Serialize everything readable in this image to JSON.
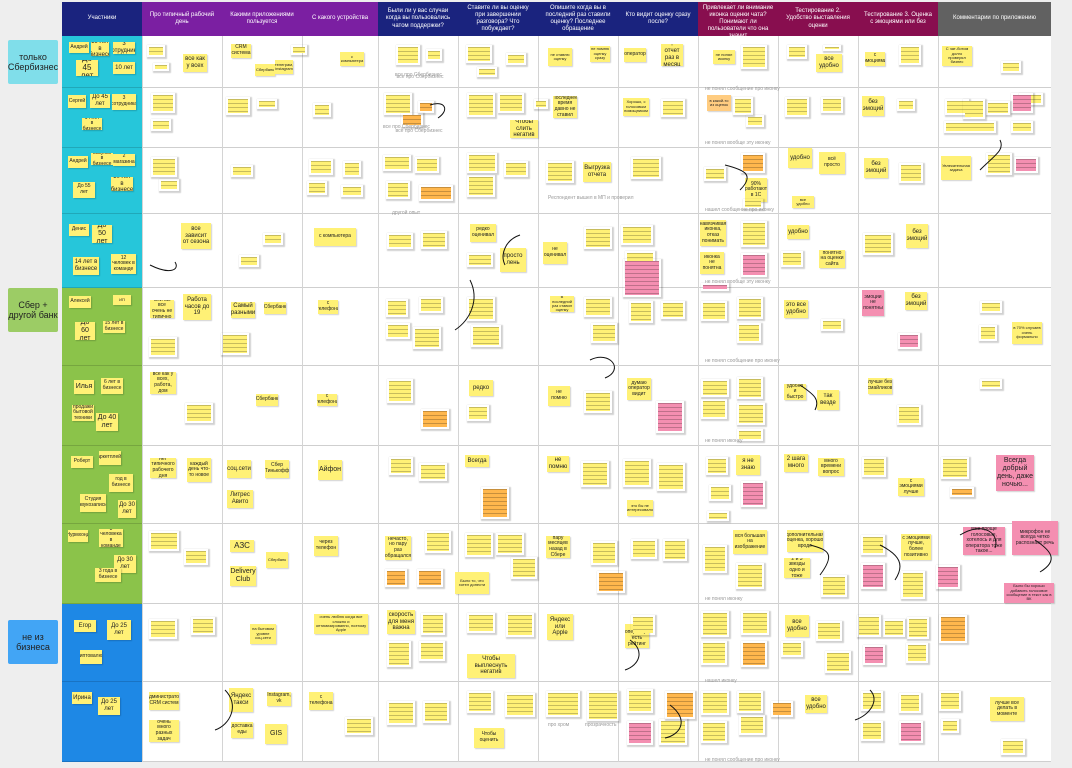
{
  "header": {
    "participants": "Участники",
    "columns": [
      {
        "label": "Про типичный рабочий день",
        "color": "#7b1fa2"
      },
      {
        "label": "Какими приложениями пользуется",
        "color": "#7b1fa2"
      },
      {
        "label": "С какого устройства",
        "color": "#7b1fa2"
      },
      {
        "label": "Были ли у вас случаи когда вы пользовались чатом поддержки?",
        "color": "#1a237e"
      },
      {
        "label": "Ставите ли вы оценку при завершении разговора? Что побуждает?",
        "color": "#1a237e"
      },
      {
        "label": "Опишите когда вы в последний раз ставили оценку? Последнее обращение",
        "color": "#1a237e"
      },
      {
        "label": "Кто видит оценку сразу после?",
        "color": "#1a237e"
      },
      {
        "label": "Тестирование 1. Привлекает ли внимание иконка оценки чата? Понимают ли пользователи что она значит",
        "color": "#880e4f"
      },
      {
        "label": "Тестирование 2. Удобство выставления оценки",
        "color": "#880e4f"
      },
      {
        "label": "Тестирование 3. Оценка с эмоциями или без",
        "color": "#880e4f"
      },
      {
        "label": "Комментарии по приложению",
        "color": "#616161"
      }
    ]
  },
  "groups": [
    {
      "label": "только Сбербизнес",
      "color": "#80deea"
    },
    {
      "label": "Сбер + другой банк",
      "color": "#9ccc65"
    },
    {
      "label": "не из бизнеса",
      "color": "#42a5f5"
    }
  ],
  "participants": [
    {
      "notes": [
        "Андрей",
        "19 лет в бизнесе",
        "До 45 лет",
        "3 сотрудника",
        "10 лет"
      ]
    },
    {
      "notes": [
        "Сергей",
        "До 45 лет",
        "14 лет в бизнесе",
        "3 сотрудника"
      ]
    },
    {
      "notes": [
        "Андрей",
        "Закупки в бизнесе",
        "До 55 лет",
        "10 лет в бизнесе",
        "2 магазина"
      ]
    },
    {
      "notes": [
        "Денис",
        "До 50 лет",
        "14 лет в бизнесе",
        "12 человек в команде"
      ]
    },
    {
      "notes": [
        "Алексей",
        "До 60 лет",
        "15 лет в бизнесе",
        "ИП"
      ]
    },
    {
      "notes": [
        "Илья",
        "6 лет в бизнесе",
        "продажи бытовой техники",
        "До 40 лет"
      ]
    },
    {
      "notes": [
        "Роберт",
        "Маркетплейсы",
        "год в бизнесе",
        "Студия звукозаписи",
        "До 30 лет"
      ]
    },
    {
      "notes": [
        "Нурмхонд",
        "3 человека в команде",
        "До 30 лет",
        "3 года в бизнесе"
      ]
    },
    {
      "notes": [
        "Егор",
        "До 25 лет",
        "криптовалюта"
      ]
    },
    {
      "notes": [
        "Ирина",
        "До 25 лет"
      ]
    }
  ],
  "stickies": [
    {
      "t": "все как у всех"
    },
    {
      "t": "CRM система"
    },
    {
      "t": "Сбербанк"
    },
    {
      "t": "телеграм, instagram"
    },
    {
      "t": "с компьютера"
    },
    {
      "t": "все про Сбербизнес"
    },
    {
      "t": "не ставлю оценку"
    },
    {
      "t": "не помню оценку сразу"
    },
    {
      "t": "оператор"
    },
    {
      "t": "+ отчет раз в месяц"
    },
    {
      "t": "не понял иконку"
    },
    {
      "t": "все удобно"
    },
    {
      "t": "с эмоциями"
    },
    {
      "t": "С чат-ботом долго проверял бизнес"
    },
    {
      "t": "все про Сбербизнес"
    },
    {
      "t": "Чтобы слить негатив"
    },
    {
      "t": "Последнее время давно не ставил"
    },
    {
      "t": "Хорошо, с голосовым помощником"
    },
    {
      "t": "в какой-то из оценок"
    },
    {
      "t": "без эмоций"
    },
    {
      "t": "удобно"
    },
    {
      "t": "всё просто"
    },
    {
      "t": "Выгрузка отчета"
    },
    {
      "t": "90% работают в 1С"
    },
    {
      "t": "все удобно"
    },
    {
      "t": "без эмоций"
    },
    {
      "t": "Увлекательная задача"
    },
    {
      "t": "все зависит от сезона"
    },
    {
      "t": "с компьютера"
    },
    {
      "t": "редко оценивал"
    },
    {
      "t": "просто лень"
    },
    {
      "t": "не оценивал"
    },
    {
      "t": "навязчивая иконка, отказ понимать"
    },
    {
      "t": "иконка не понятна"
    },
    {
      "t": "удобно"
    },
    {
      "t": "понятно на оценки сайта"
    },
    {
      "t": "без эмоций"
    },
    {
      "t": "Сейчас все очень не типично"
    },
    {
      "t": "Работа часов до 19"
    },
    {
      "t": "Самый разными"
    },
    {
      "t": "Сбербанк"
    },
    {
      "t": "с телефона"
    },
    {
      "t": "В последний раз ставил оценку"
    },
    {
      "t": "это все удобно"
    },
    {
      "t": "эмоции не понятны"
    },
    {
      "t": "без эмоций"
    },
    {
      "t": "в 70% случаев очень формально"
    },
    {
      "t": "все как у всех, работа, дом"
    },
    {
      "t": "Сбербанк"
    },
    {
      "t": "с телефона"
    },
    {
      "t": "редко"
    },
    {
      "t": "не помню"
    },
    {
      "t": "думаю оператор видит"
    },
    {
      "t": "удобно и быстро"
    },
    {
      "t": "так везде"
    },
    {
      "t": "лучше без смайликов"
    },
    {
      "t": "нет типичного рабочего дня"
    },
    {
      "t": "каждый день что-то новое"
    },
    {
      "t": "соц.сети"
    },
    {
      "t": "Сбер Тинькофф"
    },
    {
      "t": "Литрес Авито"
    },
    {
      "t": "Айфон"
    },
    {
      "t": "Всегда"
    },
    {
      "t": "не помню"
    },
    {
      "t": "это бы не интересовало"
    },
    {
      "t": "я не знаю"
    },
    {
      "t": "2 шага много"
    },
    {
      "t": "много времени вопрос"
    },
    {
      "t": "с эмоциями лучше"
    },
    {
      "t": "Всегда добрый день, даже ночью..."
    },
    {
      "t": "АЗС"
    },
    {
      "t": "Delivery Club"
    },
    {
      "t": "Сбербанк"
    },
    {
      "t": "через телефон"
    },
    {
      "t": "нечасто, но пару раз обращался"
    },
    {
      "t": "пару месяцев назад в Сбере"
    },
    {
      "t": "Было то, что хотел донести"
    },
    {
      "t": "вся большая на изображение"
    },
    {
      "t": "дополнительная оценка, хорошо вроде"
    },
    {
      "t": "2 и 3 звезды одно и тоже"
    },
    {
      "t": "с эмоциями лучше, более позитивно"
    },
    {
      "t": "мне проще голосовые, хотелось и для оператора тоже такое..."
    },
    {
      "t": "микрофон не всегда четко распознает речь"
    },
    {
      "t": "Было бы хорошо добавить голосовое сообщение в текст как в ВК"
    },
    {
      "t": "на бытовом уровне соц.сети"
    },
    {
      "t": "очень люблю когда все сложно и оптимизированно, поэтому Apple"
    },
    {
      "t": "скорость для меня важна"
    },
    {
      "t": "Чтобы выплеснуть негатив"
    },
    {
      "t": "Яндекс или Apple"
    },
    {
      "t": "у оператора есть рейтинг"
    },
    {
      "t": "все удобно"
    },
    {
      "t": "администратор CRM систем"
    },
    {
      "t": "очень много разных задач"
    },
    {
      "t": "Яндекс такси"
    },
    {
      "t": "Instagram, vk"
    },
    {
      "t": "доставка еды"
    },
    {
      "t": "GIS"
    },
    {
      "t": "с телефона"
    },
    {
      "t": "Чтобы оценить"
    },
    {
      "t": "все удобно"
    },
    {
      "t": "лучше все делать в моменте"
    }
  ],
  "labels": [
    "все про Сбербизнес",
    "все про Сбербизнес",
    "другой опыт",
    "Респондент вышел в МП и проверил",
    "не понял сообщение про иконку",
    "не понял вообще эту иконку",
    "нашел сообщение про иконку",
    "не понял вообще эту иконку",
    "не понял сообщение про иконку",
    "не понял иконку",
    "не понял иконку",
    "нашел иконку",
    "про хром",
    "прозрачность",
    "не понял сообщение про иконку"
  ]
}
